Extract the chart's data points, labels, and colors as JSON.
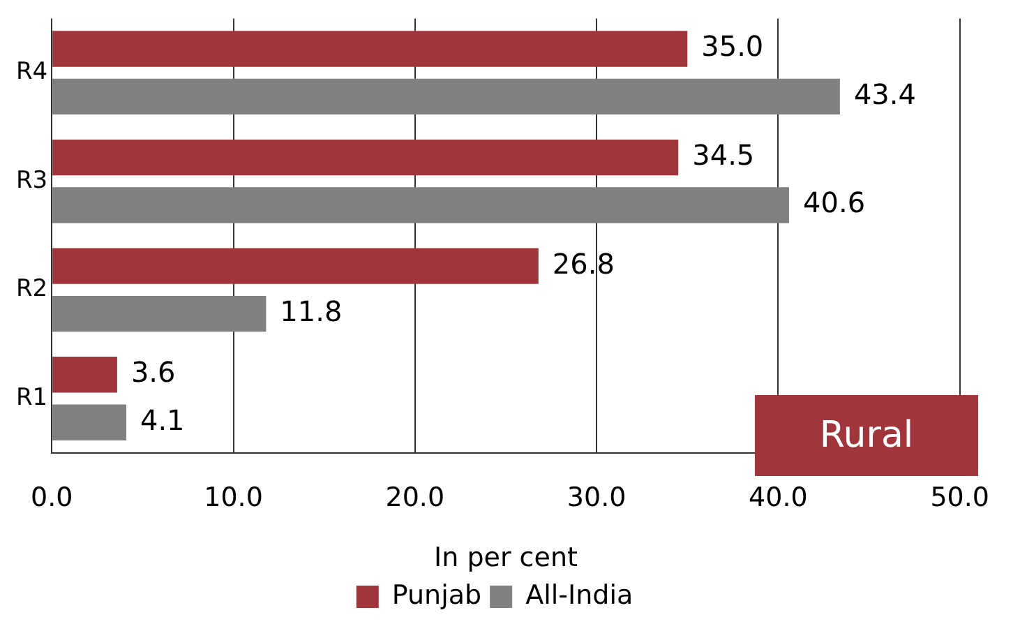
{
  "chart_data": {
    "type": "bar",
    "orientation": "horizontal",
    "categories": [
      "R4",
      "R3",
      "R2",
      "R1"
    ],
    "series": [
      {
        "name": "Punjab",
        "color": "#a0353b",
        "values": [
          35.0,
          34.5,
          26.8,
          3.6
        ],
        "value_labels": [
          "35.0",
          "34.5",
          "26.8",
          "3.6"
        ]
      },
      {
        "name": "All-India",
        "color": "#808080",
        "values": [
          43.4,
          40.6,
          11.8,
          4.1
        ],
        "value_labels": [
          "43.4",
          "40.6",
          "11.8",
          "4.1"
        ]
      }
    ],
    "xlim": [
      0,
      50
    ],
    "xticks": [
      {
        "value": 0,
        "label": "0.0"
      },
      {
        "value": 10,
        "label": "10.0"
      },
      {
        "value": 20,
        "label": "20.0"
      },
      {
        "value": 30,
        "label": "30.0"
      },
      {
        "value": 40,
        "label": "40.0"
      },
      {
        "value": 50,
        "label": "50.0"
      }
    ],
    "xlabel": "In per cent",
    "grid": "x",
    "legend": "bottom",
    "annotations": [
      "Rural"
    ]
  }
}
